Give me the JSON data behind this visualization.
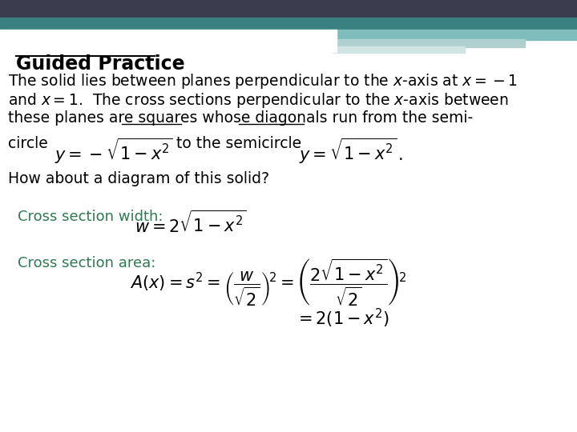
{
  "bg_color": "#ffffff",
  "header_dark_color": "#3b3d4e",
  "header_teal_color": "#3a8080",
  "header_light_color1": "#7fbdbd",
  "header_light_color2": "#b0d0d0",
  "header_light_color3": "#d0e4e4",
  "title": "Guided Practice",
  "para_line1": "The solid lies between planes perpendicular to the $x$-axis at $x = -1$",
  "para_line2": "and $x = 1$.  The cross sections perpendicular to the $x$-axis between",
  "para_line3": "these planes are squares whose diagonals run from the semi-",
  "circle_text": "circle",
  "neg_formula": "$y = -\\sqrt{1-x^2}$",
  "to_semicircle": "to the semicircle",
  "pos_formula": "$y = \\sqrt{1-x^2}\\,.$",
  "how_about": "How about a diagram of this solid?",
  "width_label": "Cross section width:",
  "width_formula": "$w = 2\\sqrt{1-x^2}$",
  "area_label": "Cross section area:",
  "area_formula1": "$A\\left(x\\right) = s^2 = \\left(\\dfrac{w}{\\sqrt{2}}\\right)^{\\!2} = \\left(\\dfrac{2\\sqrt{1-x^2}}{\\sqrt{2}}\\right)^{\\!2}$",
  "area_formula2": "$= 2\\left(1-x^2\\right)$",
  "font_body": 13.5,
  "font_formula": 15,
  "font_title": 17,
  "text_color": "#000000",
  "label_color": "#2d7a50"
}
